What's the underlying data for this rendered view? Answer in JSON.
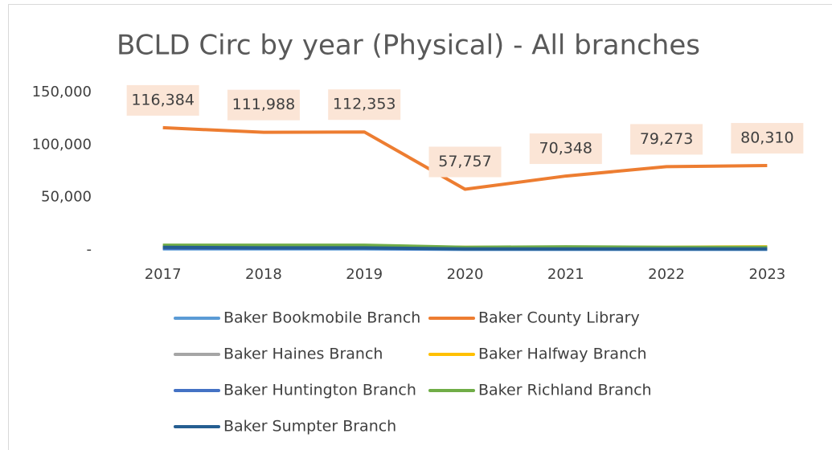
{
  "chart_data": {
    "type": "line",
    "title": "BCLD Circ by year (Physical) - All branches",
    "categories": [
      "2017",
      "2018",
      "2019",
      "2020",
      "2021",
      "2022",
      "2023"
    ],
    "ylim": [
      0,
      150000
    ],
    "yticks": [
      {
        "value": 0,
        "label": "-"
      },
      {
        "value": 50000,
        "label": "50,000"
      },
      {
        "value": 100000,
        "label": "100,000"
      },
      {
        "value": 150000,
        "label": "150,000"
      }
    ],
    "grid": false,
    "legend": "bottom",
    "series": [
      {
        "name": "Baker Bookmobile Branch",
        "color": "#5b9bd5",
        "values": [
          1000,
          1000,
          1000,
          500,
          500,
          500,
          500
        ]
      },
      {
        "name": "Baker County Library",
        "color": "#ed7d31",
        "values": [
          116384,
          111988,
          112353,
          57757,
          70348,
          79273,
          80310
        ],
        "value_labels": [
          "116,384",
          "111,988",
          "112,353",
          "57,757",
          "70,348",
          "79,273",
          "80,310"
        ]
      },
      {
        "name": "Baker Haines Branch",
        "color": "#a5a5a5",
        "values": [
          3000,
          3000,
          3000,
          2000,
          2000,
          2000,
          2000
        ]
      },
      {
        "name": "Baker Halfway Branch",
        "color": "#ffc000",
        "values": [
          3500,
          3500,
          3500,
          2500,
          2500,
          2500,
          3000
        ]
      },
      {
        "name": "Baker Huntington Branch",
        "color": "#4472c4",
        "values": [
          1500,
          1500,
          1500,
          1000,
          1000,
          1000,
          1000
        ]
      },
      {
        "name": "Baker Richland Branch",
        "color": "#70ad47",
        "values": [
          4500,
          4500,
          4500,
          2500,
          3000,
          2500,
          2500
        ]
      },
      {
        "name": "Baker Sumpter Branch",
        "color": "#255e91",
        "values": [
          2500,
          2000,
          2000,
          1000,
          1000,
          1000,
          1000
        ]
      }
    ]
  }
}
